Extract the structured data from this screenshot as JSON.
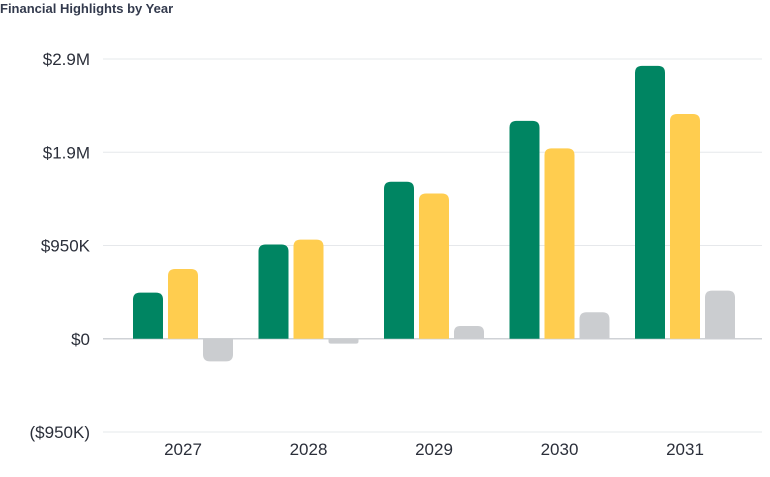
{
  "chart_data": {
    "type": "bar",
    "title": "Financial Highlights by Year",
    "categories": [
      "2027",
      "2028",
      "2029",
      "2030",
      "2031"
    ],
    "series": [
      {
        "color": "#008562",
        "values": [
          470000,
          960000,
          1600000,
          2220000,
          2780000
        ]
      },
      {
        "color": "#ffcd4f",
        "values": [
          710000,
          1010000,
          1480000,
          1940000,
          2290000
        ]
      },
      {
        "color": "#cbcdd0",
        "values": [
          -230000,
          -50000,
          130000,
          270000,
          490000
        ]
      }
    ],
    "y_ticks": [
      {
        "value": 2850000,
        "label": "$2.9M"
      },
      {
        "value": 1900000,
        "label": "$1.9M"
      },
      {
        "value": 950000,
        "label": "$950K"
      },
      {
        "value": 0,
        "label": "$0"
      },
      {
        "value": -950000,
        "label": "($950K)"
      }
    ],
    "ylim": [
      -950000,
      2850000
    ],
    "grid": true
  }
}
